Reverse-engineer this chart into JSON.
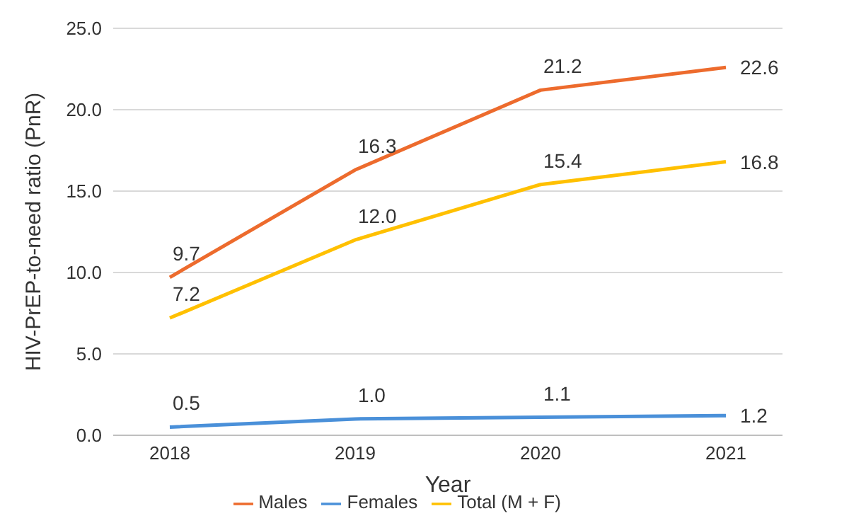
{
  "chart_data": {
    "type": "line",
    "xlabel": "Year",
    "ylabel": "HIV-PrEP-to-need ratio (PnR)",
    "categories": [
      "2018",
      "2019",
      "2020",
      "2021"
    ],
    "series": [
      {
        "name": "Males",
        "color": "#ed6b2d",
        "values": [
          9.7,
          16.3,
          21.2,
          22.6
        ],
        "value_labels": [
          "9.7",
          "16.3",
          "21.2",
          "22.6"
        ]
      },
      {
        "name": "Females",
        "color": "#4a90d9",
        "values": [
          0.5,
          1.0,
          1.1,
          1.2
        ],
        "value_labels": [
          "0.5",
          "1.0",
          "1.1",
          "1.2"
        ]
      },
      {
        "name": "Total (M + F)",
        "color": "#ffc000",
        "values": [
          7.2,
          12.0,
          15.4,
          16.8
        ],
        "value_labels": [
          "7.2",
          "12.0",
          "15.4",
          "16.8"
        ]
      }
    ],
    "ylim": [
      0,
      25
    ],
    "yticks": [
      {
        "value": 0,
        "label": "0.0"
      },
      {
        "value": 5,
        "label": "5.0"
      },
      {
        "value": 10,
        "label": "10.0"
      },
      {
        "value": 15,
        "label": "15.0"
      },
      {
        "value": 20,
        "label": "20.0"
      },
      {
        "value": 25,
        "label": "25.0"
      }
    ],
    "grid": "y",
    "legend": "bottom",
    "marker": "none",
    "line_style": "solid"
  }
}
